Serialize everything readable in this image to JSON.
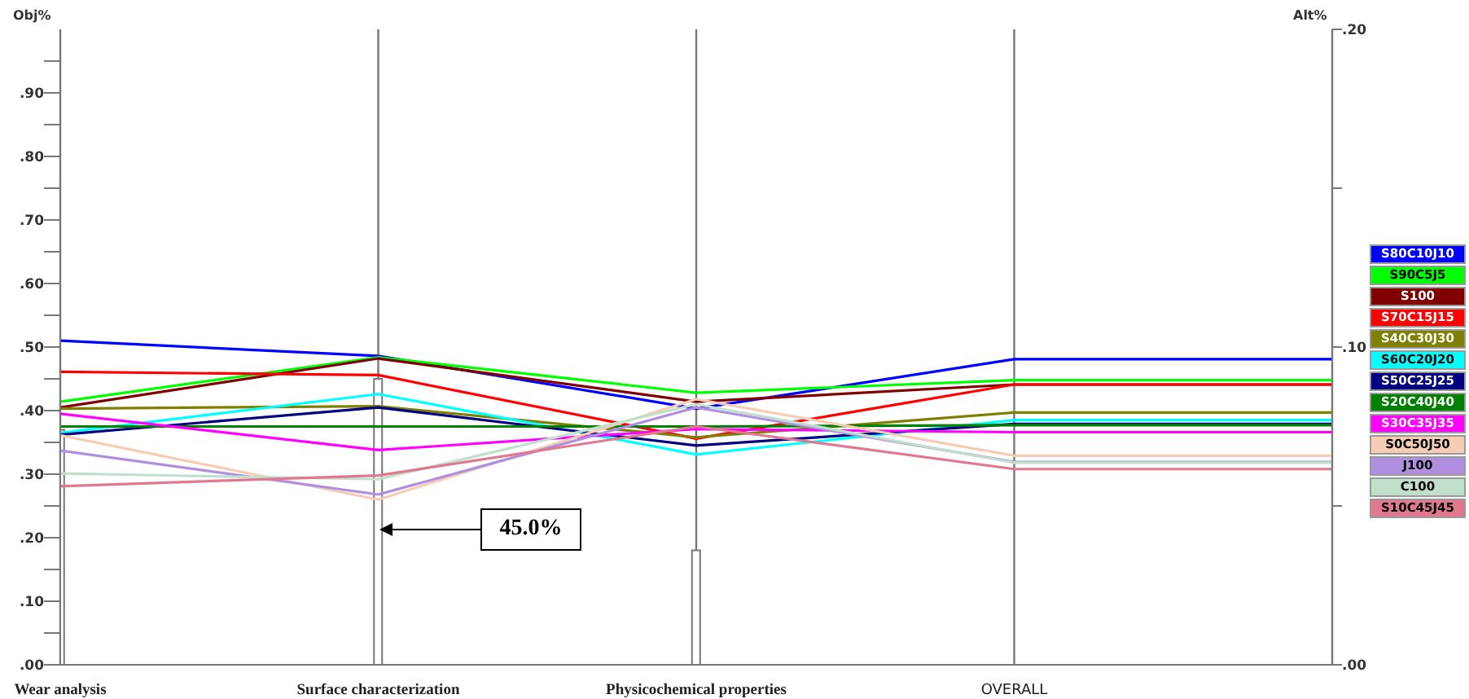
{
  "chart_data": {
    "type": "line",
    "ylabel": "Obj%",
    "y2label": "Alt%",
    "categories": [
      "Wear analysis",
      "Surface characterization",
      "Physicochemical properties",
      "OVERALL",
      null
    ],
    "ylim": [
      0,
      1
    ],
    "yticks": [
      {
        "value": 0,
        "label": ".00"
      },
      {
        "value": 0.05,
        "label": null
      },
      {
        "value": 0.1,
        "label": ".10"
      },
      {
        "value": 0.15,
        "label": null
      },
      {
        "value": 0.2,
        "label": ".20"
      },
      {
        "value": 0.25,
        "label": null
      },
      {
        "value": 0.3,
        "label": ".30"
      },
      {
        "value": 0.35,
        "label": null
      },
      {
        "value": 0.4,
        "label": ".40"
      },
      {
        "value": 0.45,
        "label": null
      },
      {
        "value": 0.5,
        "label": ".50"
      },
      {
        "value": 0.55,
        "label": null
      },
      {
        "value": 0.6,
        "label": ".60"
      },
      {
        "value": 0.65,
        "label": null
      },
      {
        "value": 0.7,
        "label": ".70"
      },
      {
        "value": 0.75,
        "label": null
      },
      {
        "value": 0.8,
        "label": ".80"
      },
      {
        "value": 0.85,
        "label": null
      },
      {
        "value": 0.9,
        "label": ".90"
      },
      {
        "value": 0.95,
        "label": null
      }
    ],
    "y2lim": [
      0,
      0.2
    ],
    "y2ticks": [
      {
        "value": 0,
        "label": ".00"
      },
      {
        "value": 0.05,
        "label": null
      },
      {
        "value": 0.1,
        "label": ".10"
      },
      {
        "value": 0.15,
        "label": null
      },
      {
        "value": 0.2,
        "label": ".20"
      }
    ],
    "grid": "x",
    "legend": "right",
    "marker": "none",
    "annotations": [
      "45.0%"
    ],
    "series": [
      {
        "type": "bar",
        "color": "#ffffff",
        "values": [
          0.37,
          0.45,
          0.18,
          null,
          null
        ]
      },
      {
        "name": "S80C10J10",
        "color": "#0000ff",
        "values": [
          0.51,
          0.486,
          0.403,
          0.481,
          0.481
        ]
      },
      {
        "name": "S90C5J5",
        "color": "#00ff00",
        "values": [
          0.414,
          0.484,
          0.428,
          0.448,
          0.448
        ]
      },
      {
        "name": "S100",
        "color": "#800000",
        "values": [
          0.405,
          0.482,
          0.414,
          0.441,
          0.441
        ]
      },
      {
        "name": "S70C15J15",
        "color": "#ff0000",
        "values": [
          0.461,
          0.456,
          0.356,
          0.441,
          0.441
        ]
      },
      {
        "name": "S40C30J30",
        "color": "#808000",
        "values": [
          0.403,
          0.407,
          0.358,
          0.397,
          0.397
        ]
      },
      {
        "name": "S60C20J20",
        "color": "#00ffff",
        "values": [
          0.365,
          0.426,
          0.331,
          0.385,
          0.385
        ]
      },
      {
        "name": "S50C25J25",
        "color": "#000080",
        "values": [
          0.362,
          0.405,
          0.345,
          0.379,
          0.379
        ]
      },
      {
        "name": "S20C40J40",
        "color": "#008000",
        "values": [
          0.375,
          0.375,
          0.375,
          0.377,
          0.377
        ]
      },
      {
        "name": "S30C35J35",
        "color": "#ff00ff",
        "values": [
          0.395,
          0.338,
          0.371,
          0.366,
          0.366
        ]
      },
      {
        "name": "S0C50J50",
        "color": "#f5cdb5",
        "values": [
          0.361,
          0.26,
          0.418,
          0.329,
          0.329
        ]
      },
      {
        "name": "J100",
        "color": "#b08ee0",
        "values": [
          0.337,
          0.268,
          0.405,
          0.319,
          0.319
        ]
      },
      {
        "name": "C100",
        "color": "#c0e0cc",
        "values": [
          0.301,
          0.292,
          0.41,
          0.318,
          0.318
        ]
      },
      {
        "name": "S10C45J45",
        "color": "#e07890",
        "values": [
          0.281,
          0.298,
          0.375,
          0.308,
          0.308
        ]
      }
    ]
  }
}
